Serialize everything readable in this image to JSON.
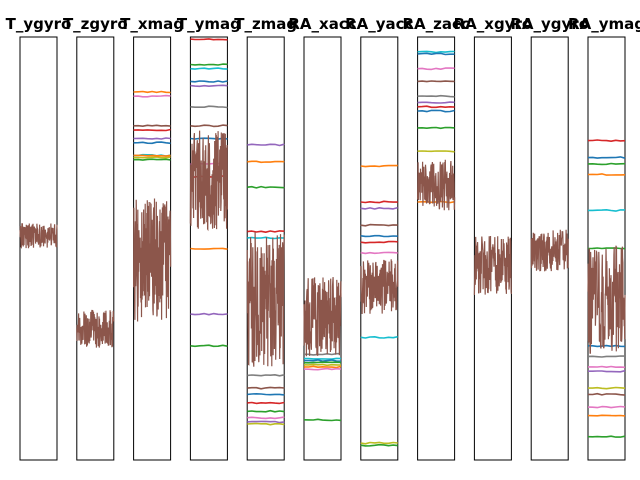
{
  "chart_data": {
    "type": "line",
    "layout": "small-multiples",
    "xlim": [
      0,
      1000
    ],
    "ylim": [
      0,
      1
    ],
    "grid": false,
    "legend": "none",
    "palette": [
      "#1f77b4",
      "#ff7f0e",
      "#2ca02c",
      "#d62728",
      "#9467bd",
      "#8c564b",
      "#e377c2",
      "#7f7f7f",
      "#bcbd22",
      "#17becf"
    ],
    "panels": [
      {
        "title": "T_ygyro",
        "noise": {
          "center": 0.53,
          "amp": 0.03,
          "start": 0,
          "end": 1
        },
        "levels": []
      },
      {
        "title": "T_zgyro",
        "noise": {
          "center": 0.31,
          "amp": 0.045,
          "start": 0,
          "end": 1
        },
        "levels": []
      },
      {
        "title": "T_xmag",
        "noise": {
          "center": 0.47,
          "amp": 0.15,
          "start": 0,
          "end": 1
        },
        "levels": [
          {
            "c": 1,
            "y": 0.87
          },
          {
            "c": 6,
            "y": 0.86
          },
          {
            "c": 5,
            "y": 0.79
          },
          {
            "c": 3,
            "y": 0.78
          },
          {
            "c": 4,
            "y": 0.76
          },
          {
            "c": 0,
            "y": 0.75
          },
          {
            "c": 9,
            "y": 0.72
          },
          {
            "c": 2,
            "y": 0.71
          },
          {
            "c": 8,
            "y": 0.715
          },
          {
            "c": 1,
            "y": 0.72
          }
        ]
      },
      {
        "title": "T_ymag",
        "noise": {
          "center": 0.66,
          "amp": 0.12,
          "start": 0,
          "end": 1
        },
        "levels": [
          {
            "c": 3,
            "y": 0.995
          },
          {
            "c": 2,
            "y": 0.935
          },
          {
            "c": 9,
            "y": 0.925
          },
          {
            "c": 0,
            "y": 0.895
          },
          {
            "c": 4,
            "y": 0.885
          },
          {
            "c": 7,
            "y": 0.835
          },
          {
            "c": 5,
            "y": 0.79
          },
          {
            "c": 0,
            "y": 0.76
          },
          {
            "c": 6,
            "y": 0.7
          },
          {
            "c": 3,
            "y": 0.67
          },
          {
            "c": 1,
            "y": 0.5
          },
          {
            "c": 4,
            "y": 0.345
          },
          {
            "c": 2,
            "y": 0.27
          }
        ]
      },
      {
        "title": "T_zmag",
        "noise": {
          "center": 0.38,
          "amp": 0.16,
          "start": 0,
          "end": 1
        },
        "levels": [
          {
            "c": 4,
            "y": 0.745
          },
          {
            "c": 1,
            "y": 0.705
          },
          {
            "c": 2,
            "y": 0.645
          },
          {
            "c": 3,
            "y": 0.54
          },
          {
            "c": 9,
            "y": 0.525
          },
          {
            "c": 7,
            "y": 0.2
          },
          {
            "c": 5,
            "y": 0.17
          },
          {
            "c": 0,
            "y": 0.155
          },
          {
            "c": 3,
            "y": 0.135
          },
          {
            "c": 2,
            "y": 0.115
          },
          {
            "c": 6,
            "y": 0.1
          },
          {
            "c": 4,
            "y": 0.09
          },
          {
            "c": 8,
            "y": 0.085
          }
        ]
      },
      {
        "title": "RA_xacc",
        "noise": {
          "center": 0.34,
          "amp": 0.095,
          "start": 0,
          "end": 1
        },
        "levels": [
          {
            "c": 7,
            "y": 0.25
          },
          {
            "c": 9,
            "y": 0.24
          },
          {
            "c": 0,
            "y": 0.235
          },
          {
            "c": 2,
            "y": 0.23
          },
          {
            "c": 8,
            "y": 0.225
          },
          {
            "c": 1,
            "y": 0.22
          },
          {
            "c": 6,
            "y": 0.215
          },
          {
            "c": 2,
            "y": 0.095
          }
        ]
      },
      {
        "title": "RA_yacc",
        "noise": {
          "center": 0.41,
          "amp": 0.065,
          "start": 0,
          "end": 1
        },
        "levels": [
          {
            "c": 1,
            "y": 0.695
          },
          {
            "c": 3,
            "y": 0.61
          },
          {
            "c": 4,
            "y": 0.595
          },
          {
            "c": 5,
            "y": 0.555
          },
          {
            "c": 0,
            "y": 0.53
          },
          {
            "c": 3,
            "y": 0.515
          },
          {
            "c": 6,
            "y": 0.49
          },
          {
            "c": 9,
            "y": 0.29
          },
          {
            "c": 8,
            "y": 0.04
          },
          {
            "c": 2,
            "y": 0.035
          }
        ]
      },
      {
        "title": "RA_zacc",
        "noise": {
          "center": 0.65,
          "amp": 0.06,
          "start": 0,
          "end": 1
        },
        "levels": [
          {
            "c": 9,
            "y": 0.965
          },
          {
            "c": 0,
            "y": 0.96
          },
          {
            "c": 6,
            "y": 0.925
          },
          {
            "c": 5,
            "y": 0.895
          },
          {
            "c": 7,
            "y": 0.86
          },
          {
            "c": 4,
            "y": 0.845
          },
          {
            "c": 3,
            "y": 0.835
          },
          {
            "c": 0,
            "y": 0.825
          },
          {
            "c": 2,
            "y": 0.785
          },
          {
            "c": 8,
            "y": 0.73
          },
          {
            "c": 1,
            "y": 0.61
          }
        ]
      },
      {
        "title": "RA_xgyro",
        "noise": {
          "center": 0.46,
          "amp": 0.07,
          "start": 0,
          "end": 1
        },
        "levels": []
      },
      {
        "title": "RA_ygyro",
        "noise": {
          "center": 0.495,
          "amp": 0.05,
          "start": 0,
          "end": 1
        },
        "levels": []
      },
      {
        "title": "RA_ymag",
        "noise": {
          "center": 0.38,
          "amp": 0.13,
          "start": 0,
          "end": 1
        },
        "levels": [
          {
            "c": 3,
            "y": 0.755
          },
          {
            "c": 0,
            "y": 0.715
          },
          {
            "c": 2,
            "y": 0.7
          },
          {
            "c": 1,
            "y": 0.675
          },
          {
            "c": 9,
            "y": 0.59
          },
          {
            "c": 2,
            "y": 0.5
          },
          {
            "c": 0,
            "y": 0.27
          },
          {
            "c": 7,
            "y": 0.245
          },
          {
            "c": 6,
            "y": 0.22
          },
          {
            "c": 4,
            "y": 0.21
          },
          {
            "c": 8,
            "y": 0.17
          },
          {
            "c": 5,
            "y": 0.155
          },
          {
            "c": 6,
            "y": 0.125
          },
          {
            "c": 1,
            "y": 0.105
          },
          {
            "c": 2,
            "y": 0.055
          }
        ]
      }
    ]
  }
}
